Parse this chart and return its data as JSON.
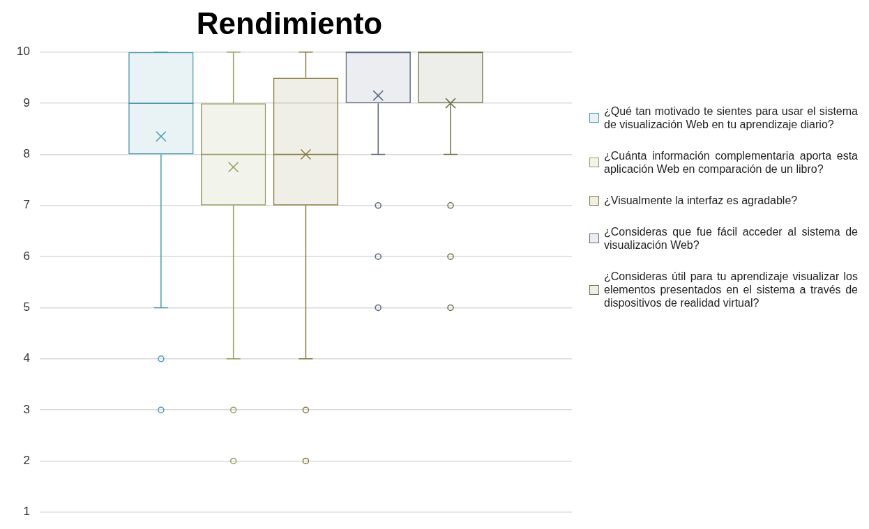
{
  "chart_data": {
    "type": "box",
    "title": "Rendimiento",
    "categories": [
      null
    ],
    "ylim": [
      1,
      10
    ],
    "yticks": [
      1,
      2,
      3,
      4,
      5,
      6,
      7,
      8,
      9,
      10
    ],
    "grid": "y",
    "legend": "right",
    "series": [
      {
        "name": "¿Qué tan motivado te sientes para usar el sistema de visualización Web en tu aprendizaje diario?",
        "color": "#4a9bb0",
        "boxes": [
          {
            "low": 5,
            "q1": 8,
            "median": 9,
            "q3": 10,
            "high": 10,
            "mean": 8.35,
            "outliers": [
              4,
              3
            ]
          }
        ]
      },
      {
        "name": "¿Cuánta información complementaria aporta esta aplicación Web en comparación de un libro?",
        "color": "#939e5c",
        "boxes": [
          {
            "low": 4,
            "q1": 7,
            "median": 8,
            "q3": 9,
            "high": 10,
            "mean": 7.75,
            "outliers": [
              3,
              2
            ]
          }
        ]
      },
      {
        "name": "¿Visualmente la interfaz es agradable?",
        "color": "#857a3c",
        "boxes": [
          {
            "low": 4,
            "q1": 7,
            "median": 8,
            "q3": 9.5,
            "high": 10,
            "mean": 8,
            "outliers": [
              3,
              2
            ]
          }
        ]
      },
      {
        "name": "¿Consideras que fue fácil acceder al sistema de visualización Web?",
        "color": "#5b6a80",
        "boxes": [
          {
            "low": 8,
            "q1": 9,
            "median": 10,
            "q3": 10,
            "high": 10,
            "mean": 9.15,
            "outliers": [
              7,
              6,
              5
            ]
          }
        ]
      },
      {
        "name": "¿Consideras útil para tu aprendizaje visualizar los elementos presentados en el sistema a través de dispositivos de realidad virtual?",
        "color": "#6b7446",
        "boxes": [
          {
            "low": 8,
            "q1": 9,
            "median": 10,
            "q3": 10,
            "high": 10,
            "mean": 9,
            "outliers": [
              7,
              6,
              5
            ]
          }
        ]
      }
    ]
  }
}
